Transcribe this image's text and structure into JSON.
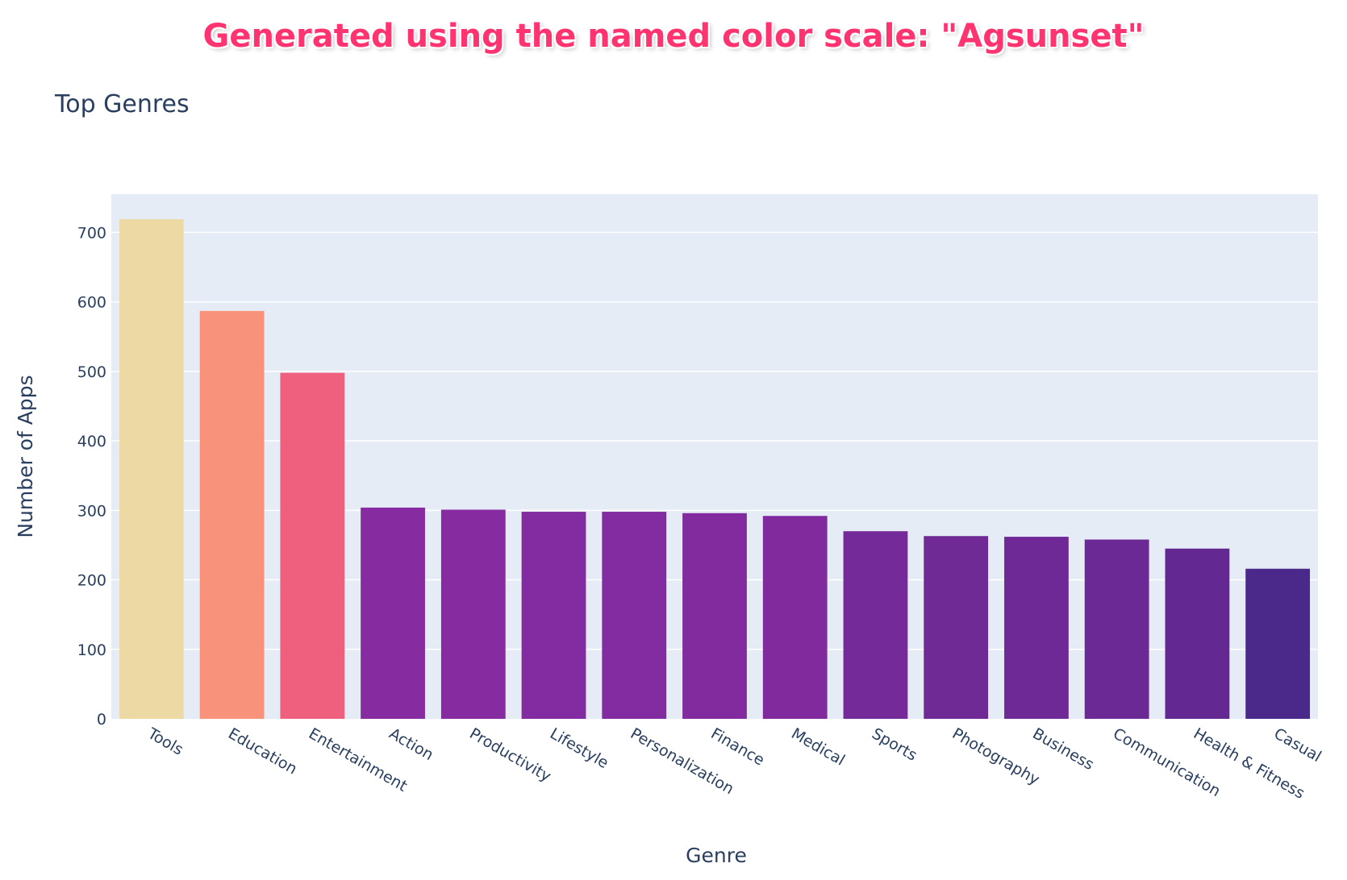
{
  "banner": {
    "text": "Generated using the named color scale: \"Agsunset\""
  },
  "chart_data": {
    "type": "bar",
    "title": "Top Genres",
    "xlabel": "Genre",
    "ylabel": "Number of Apps",
    "ylim": [
      0,
      755
    ],
    "yticks": [
      0,
      100,
      200,
      300,
      400,
      500,
      600,
      700
    ],
    "grid": true,
    "categories": [
      "Tools",
      "Education",
      "Entertainment",
      "Action",
      "Productivity",
      "Lifestyle",
      "Personalization",
      "Finance",
      "Medical",
      "Sports",
      "Photography",
      "Business",
      "Communication",
      "Health & Fitness",
      "Casual"
    ],
    "values": [
      719,
      587,
      498,
      304,
      301,
      298,
      298,
      296,
      292,
      270,
      263,
      262,
      258,
      245,
      216
    ],
    "colors": [
      "#edd9a3",
      "#f8927a",
      "#ef607f",
      "#862ca0",
      "#862ca0",
      "#832ba0",
      "#832ba0",
      "#822b9f",
      "#802a9e",
      "#742a98",
      "#6f2a96",
      "#6e2996",
      "#6b2995",
      "#642892",
      "#4a298b"
    ],
    "colorscale": "Agsunset"
  }
}
